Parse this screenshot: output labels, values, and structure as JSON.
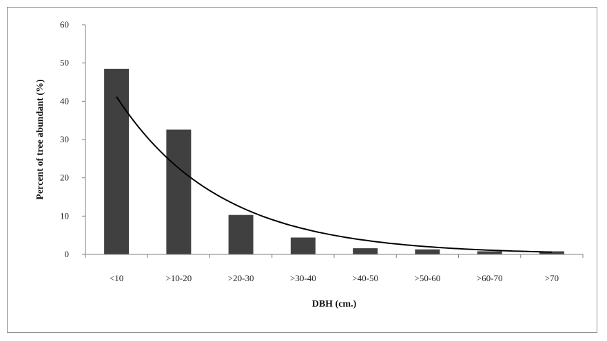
{
  "chart_data": {
    "type": "bar",
    "title": "",
    "xlabel": "DBH (cm.)",
    "ylabel": "Percent of tree abundant (%)",
    "categories": [
      "<10",
      ">10-20",
      ">20-30",
      ">30-40",
      ">40-50",
      ">50-60",
      ">60-70",
      ">70"
    ],
    "values": [
      48.5,
      32.6,
      10.3,
      4.4,
      1.6,
      1.3,
      0.8,
      0.8
    ],
    "ylim": [
      0,
      60
    ],
    "yticks": [
      "0",
      "10",
      "20",
      "30",
      "40",
      "50",
      "60"
    ],
    "grid": false,
    "legend": "none",
    "trendline": {
      "type": "exponential",
      "y_first": 41.2,
      "y_last": 0.6
    },
    "bar_color": "#404040",
    "line_color": "#000000"
  }
}
